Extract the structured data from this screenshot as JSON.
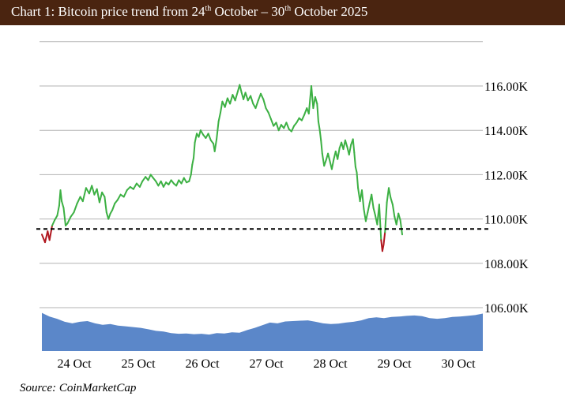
{
  "title": {
    "prefix": "Chart 1: Bitcoin price trend from 24",
    "sup1": "th",
    "middle": " October – 30",
    "sup2": "th",
    "suffix": " October 2025"
  },
  "source": "Source: CoinMarketCap",
  "colors": {
    "header_bg": "#4a2410",
    "up_line": "#3cb043",
    "down_line": "#b0161e",
    "volume_fill": "#5b87c9",
    "gridline": "#b3b3b3",
    "reference_line": "#000000"
  },
  "chart_data": {
    "type": "line",
    "title": "Chart 1: Bitcoin price trend from 24th October – 30th October 2025",
    "xlabel": "",
    "ylabel": "",
    "ylim": [
      106000,
      118000
    ],
    "grid": true,
    "y_ticks": [
      {
        "value": 116000,
        "label": "116.00K"
      },
      {
        "value": 114000,
        "label": "114.00K"
      },
      {
        "value": 112000,
        "label": "112.00K"
      },
      {
        "value": 110000,
        "label": "110.00K"
      },
      {
        "value": 108000,
        "label": "108.00K"
      },
      {
        "value": 106000,
        "label": "106.00K"
      }
    ],
    "x_ticks": [
      {
        "value": 0.5,
        "label": "24 Oct"
      },
      {
        "value": 1.5,
        "label": "25 Oct"
      },
      {
        "value": 2.5,
        "label": "26 Oct"
      },
      {
        "value": 3.5,
        "label": "27 Oct"
      },
      {
        "value": 4.5,
        "label": "28 Oct"
      },
      {
        "value": 5.5,
        "label": "29 Oct"
      },
      {
        "value": 6.5,
        "label": "30 Oct"
      }
    ],
    "x_range": [
      0,
      6.9
    ],
    "reference_value": 109550,
    "series": [
      {
        "values": [
          [
            0.0,
            109300
          ],
          [
            0.05,
            108950
          ],
          [
            0.09,
            109450
          ],
          [
            0.12,
            109050
          ],
          [
            0.16,
            109700
          ],
          [
            0.2,
            109950
          ],
          [
            0.24,
            110150
          ],
          [
            0.27,
            110600
          ],
          [
            0.29,
            111300
          ],
          [
            0.31,
            110800
          ],
          [
            0.34,
            110500
          ],
          [
            0.37,
            109700
          ],
          [
            0.4,
            109800
          ],
          [
            0.45,
            110100
          ],
          [
            0.5,
            110300
          ],
          [
            0.55,
            110700
          ],
          [
            0.6,
            111000
          ],
          [
            0.64,
            110800
          ],
          [
            0.69,
            111400
          ],
          [
            0.74,
            111150
          ],
          [
            0.78,
            111500
          ],
          [
            0.82,
            111100
          ],
          [
            0.86,
            111350
          ],
          [
            0.9,
            110750
          ],
          [
            0.94,
            111200
          ],
          [
            0.98,
            111000
          ],
          [
            1.01,
            110300
          ],
          [
            1.04,
            110000
          ],
          [
            1.07,
            110250
          ],
          [
            1.1,
            110400
          ],
          [
            1.14,
            110700
          ],
          [
            1.18,
            110850
          ],
          [
            1.23,
            111100
          ],
          [
            1.28,
            111000
          ],
          [
            1.33,
            111300
          ],
          [
            1.38,
            111450
          ],
          [
            1.43,
            111350
          ],
          [
            1.48,
            111600
          ],
          [
            1.53,
            111450
          ],
          [
            1.57,
            111700
          ],
          [
            1.62,
            111900
          ],
          [
            1.66,
            111750
          ],
          [
            1.7,
            112000
          ],
          [
            1.74,
            111850
          ],
          [
            1.78,
            111700
          ],
          [
            1.82,
            111500
          ],
          [
            1.86,
            111700
          ],
          [
            1.9,
            111450
          ],
          [
            1.94,
            111650
          ],
          [
            1.98,
            111550
          ],
          [
            2.02,
            111750
          ],
          [
            2.06,
            111600
          ],
          [
            2.1,
            111500
          ],
          [
            2.14,
            111750
          ],
          [
            2.18,
            111600
          ],
          [
            2.22,
            111850
          ],
          [
            2.26,
            111650
          ],
          [
            2.3,
            111700
          ],
          [
            2.33,
            112000
          ],
          [
            2.35,
            112450
          ],
          [
            2.37,
            112750
          ],
          [
            2.39,
            113450
          ],
          [
            2.42,
            113850
          ],
          [
            2.45,
            113700
          ],
          [
            2.48,
            114000
          ],
          [
            2.52,
            113800
          ],
          [
            2.56,
            113650
          ],
          [
            2.6,
            113850
          ],
          [
            2.64,
            113550
          ],
          [
            2.68,
            113400
          ],
          [
            2.7,
            113050
          ],
          [
            2.73,
            113600
          ],
          [
            2.76,
            114400
          ],
          [
            2.79,
            114800
          ],
          [
            2.82,
            115300
          ],
          [
            2.86,
            115050
          ],
          [
            2.9,
            115450
          ],
          [
            2.94,
            115200
          ],
          [
            2.98,
            115600
          ],
          [
            3.02,
            115350
          ],
          [
            3.06,
            115750
          ],
          [
            3.09,
            116050
          ],
          [
            3.12,
            115700
          ],
          [
            3.15,
            115400
          ],
          [
            3.18,
            115700
          ],
          [
            3.22,
            115350
          ],
          [
            3.26,
            115550
          ],
          [
            3.3,
            115200
          ],
          [
            3.34,
            115000
          ],
          [
            3.38,
            115350
          ],
          [
            3.42,
            115650
          ],
          [
            3.46,
            115400
          ],
          [
            3.5,
            115000
          ],
          [
            3.54,
            114800
          ],
          [
            3.58,
            114500
          ],
          [
            3.62,
            114200
          ],
          [
            3.66,
            114350
          ],
          [
            3.7,
            114000
          ],
          [
            3.74,
            114250
          ],
          [
            3.78,
            114100
          ],
          [
            3.82,
            114350
          ],
          [
            3.86,
            114050
          ],
          [
            3.9,
            113950
          ],
          [
            3.94,
            114200
          ],
          [
            3.98,
            114350
          ],
          [
            4.02,
            114550
          ],
          [
            4.06,
            114450
          ],
          [
            4.1,
            114700
          ],
          [
            4.14,
            115000
          ],
          [
            4.17,
            114750
          ],
          [
            4.19,
            115400
          ],
          [
            4.21,
            116000
          ],
          [
            4.24,
            115000
          ],
          [
            4.27,
            115500
          ],
          [
            4.3,
            115200
          ],
          [
            4.32,
            114400
          ],
          [
            4.34,
            114050
          ],
          [
            4.36,
            113550
          ],
          [
            4.38,
            112950
          ],
          [
            4.41,
            112400
          ],
          [
            4.44,
            112650
          ],
          [
            4.47,
            112950
          ],
          [
            4.5,
            112600
          ],
          [
            4.53,
            112250
          ],
          [
            4.56,
            112700
          ],
          [
            4.59,
            113050
          ],
          [
            4.62,
            112700
          ],
          [
            4.65,
            113200
          ],
          [
            4.68,
            113450
          ],
          [
            4.71,
            113150
          ],
          [
            4.74,
            113550
          ],
          [
            4.77,
            113250
          ],
          [
            4.8,
            112900
          ],
          [
            4.83,
            113350
          ],
          [
            4.86,
            113600
          ],
          [
            4.88,
            113000
          ],
          [
            4.9,
            112350
          ],
          [
            4.92,
            112100
          ],
          [
            4.94,
            111400
          ],
          [
            4.97,
            110800
          ],
          [
            5.0,
            111300
          ],
          [
            5.03,
            110450
          ],
          [
            5.06,
            109900
          ],
          [
            5.09,
            110300
          ],
          [
            5.12,
            110700
          ],
          [
            5.15,
            111100
          ],
          [
            5.18,
            110500
          ],
          [
            5.21,
            110150
          ],
          [
            5.24,
            109750
          ],
          [
            5.27,
            110650
          ],
          [
            5.3,
            109050
          ],
          [
            5.32,
            108550
          ],
          [
            5.34,
            108850
          ],
          [
            5.36,
            109400
          ],
          [
            5.39,
            110750
          ],
          [
            5.42,
            111400
          ],
          [
            5.45,
            110950
          ],
          [
            5.48,
            110650
          ],
          [
            5.51,
            110100
          ],
          [
            5.54,
            109750
          ],
          [
            5.57,
            110250
          ],
          [
            5.6,
            109950
          ],
          [
            5.63,
            109300
          ]
        ]
      }
    ],
    "volume": [
      5100,
      4600,
      4300,
      3900,
      3700,
      3900,
      4000,
      3700,
      3500,
      3600,
      3400,
      3300,
      3200,
      3100,
      2900,
      2700,
      2600,
      2400,
      2300,
      2350,
      2250,
      2300,
      2200,
      2400,
      2350,
      2500,
      2450,
      2800,
      3100,
      3450,
      3800,
      3700,
      3950,
      4000,
      4050,
      4100,
      3900,
      3700,
      3600,
      3650,
      3800,
      3900,
      4100,
      4400,
      4500,
      4400,
      4550,
      4600,
      4700,
      4750,
      4650,
      4400,
      4300,
      4400,
      4550,
      4600,
      4700,
      4800,
      5000
    ]
  }
}
